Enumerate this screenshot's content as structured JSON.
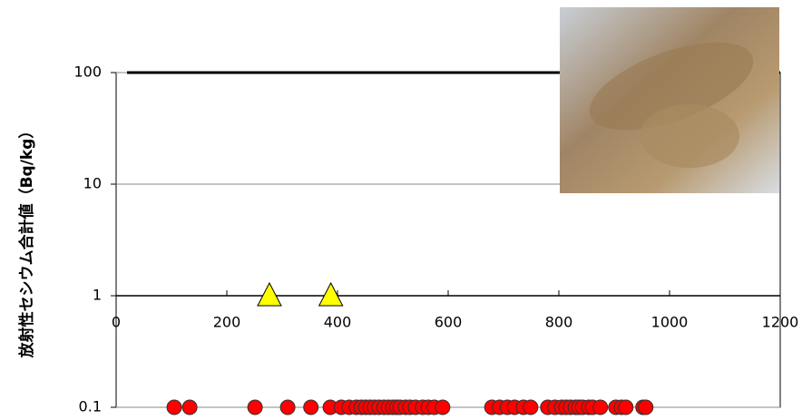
{
  "chart_data": {
    "type": "scatter",
    "y_label": "放射性セシウム合計値（Bq/kg）",
    "ylog": true,
    "ylim": [
      0.1,
      100
    ],
    "yticks": [
      0.1,
      1,
      10,
      100
    ],
    "xlim": [
      0,
      1200
    ],
    "xticks": [
      0,
      200,
      400,
      600,
      800,
      1000,
      1200
    ],
    "x_axis_at": 1,
    "reference_line": 100,
    "grid": true,
    "series": [
      {
        "marker": "circle",
        "color": "#ff0000",
        "x": [
          105,
          133,
          251,
          310,
          352,
          387,
          407,
          421,
          434,
          443,
          451,
          459,
          467,
          475,
          484,
          492,
          500,
          507,
          513,
          523,
          531,
          541,
          554,
          564,
          575,
          590,
          679,
          693,
          707,
          720,
          736,
          749,
          780,
          793,
          805,
          813,
          821,
          830,
          836,
          843,
          854,
          861,
          875,
          903,
          913,
          921,
          952,
          957
        ],
        "values": [
          0.1,
          0.1,
          0.1,
          0.1,
          0.1,
          0.1,
          0.1,
          0.1,
          0.1,
          0.1,
          0.1,
          0.1,
          0.1,
          0.1,
          0.1,
          0.1,
          0.1,
          0.1,
          0.1,
          0.1,
          0.1,
          0.1,
          0.1,
          0.1,
          0.1,
          0.1,
          0.1,
          0.1,
          0.1,
          0.1,
          0.1,
          0.1,
          0.1,
          0.1,
          0.1,
          0.1,
          0.1,
          0.1,
          0.1,
          0.1,
          0.1,
          0.1,
          0.1,
          0.1,
          0.1,
          0.1,
          0.1,
          0.1
        ]
      },
      {
        "marker": "triangle",
        "color": "#ffff00",
        "x": [
          277,
          388
        ],
        "values": [
          1,
          1
        ]
      }
    ]
  }
}
